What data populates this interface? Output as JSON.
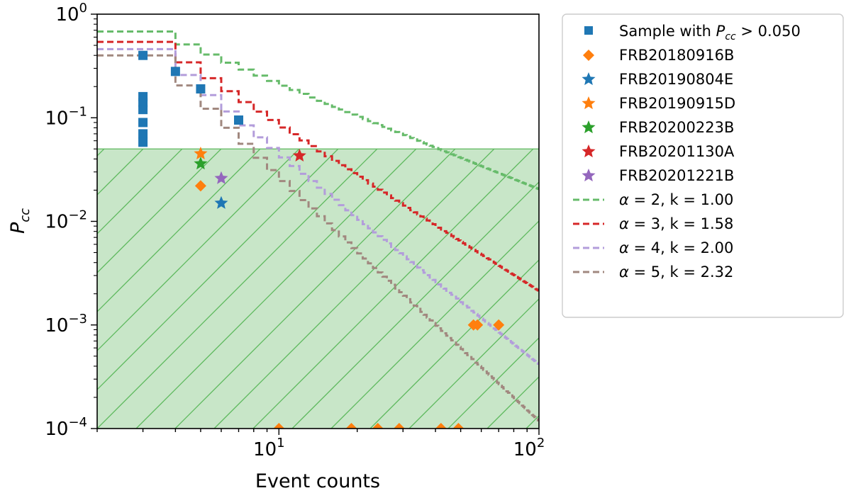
{
  "chart_data": {
    "type": "scatter",
    "xscale": "log",
    "yscale": "log",
    "xlim": [
      2,
      100
    ],
    "ylim": [
      0.0001,
      1
    ],
    "xlabel": "Event counts",
    "ylabel_main": "P",
    "ylabel_sub": "cc",
    "xticks": [
      {
        "base": "10",
        "exp": "1",
        "value": 10
      },
      {
        "base": "10",
        "exp": "2",
        "value": 100
      }
    ],
    "yticks": [
      {
        "base": "10",
        "exp": "0",
        "value": 1
      },
      {
        "base": "10",
        "exp": "−1",
        "value": 0.1
      },
      {
        "base": "10",
        "exp": "−2",
        "value": 0.01
      },
      {
        "base": "10",
        "exp": "−3",
        "value": 0.001
      },
      {
        "base": "10",
        "exp": "−4",
        "value": 0.0001
      }
    ],
    "threshold": {
      "value": 0.05,
      "fill_color": "#c8e6c8",
      "line_color": "#5cb85c"
    },
    "legend_position": "outside-right",
    "legend": {
      "sample_prefix": "Sample with ",
      "sample_sym": "P",
      "sample_sub": "cc",
      "sample_suffix": " > 0.050"
    },
    "sample": {
      "color": "#1f77b4",
      "marker": "square",
      "points": [
        {
          "x": 3,
          "y": 0.4
        },
        {
          "x": 3,
          "y": 0.16
        },
        {
          "x": 3,
          "y": 0.14
        },
        {
          "x": 3,
          "y": 0.12
        },
        {
          "x": 3,
          "y": 0.09
        },
        {
          "x": 3,
          "y": 0.07
        },
        {
          "x": 3,
          "y": 0.058
        },
        {
          "x": 4,
          "y": 0.28
        },
        {
          "x": 5,
          "y": 0.19
        },
        {
          "x": 7,
          "y": 0.095
        }
      ]
    },
    "frbs": [
      {
        "name": "FRB20180916B",
        "color": "#ff7f0e",
        "marker": "diamond",
        "points": [
          {
            "x": 5,
            "y": 0.022
          },
          {
            "x": 56,
            "y": 0.001
          },
          {
            "x": 58,
            "y": 0.001
          },
          {
            "x": 70,
            "y": 0.001
          },
          {
            "x": 10,
            "y": 0.0001
          },
          {
            "x": 19,
            "y": 0.0001
          },
          {
            "x": 24,
            "y": 0.0001
          },
          {
            "x": 29,
            "y": 0.0001
          },
          {
            "x": 42,
            "y": 0.0001
          },
          {
            "x": 49,
            "y": 0.0001
          }
        ]
      },
      {
        "name": "FRB20190804E",
        "color": "#1f77b4",
        "marker": "star",
        "points": [
          {
            "x": 6,
            "y": 0.015
          }
        ]
      },
      {
        "name": "FRB20190915D",
        "color": "#ff7f0e",
        "marker": "star",
        "points": [
          {
            "x": 5,
            "y": 0.045
          }
        ]
      },
      {
        "name": "FRB20200223B",
        "color": "#2ca02c",
        "marker": "star",
        "points": [
          {
            "x": 5,
            "y": 0.036
          }
        ]
      },
      {
        "name": "FRB20201130A",
        "color": "#d62728",
        "marker": "star",
        "points": [
          {
            "x": 12,
            "y": 0.043
          }
        ]
      },
      {
        "name": "FRB20201221B",
        "color": "#9467bd",
        "marker": "star",
        "points": [
          {
            "x": 6,
            "y": 0.026
          }
        ]
      }
    ],
    "curves": [
      {
        "alpha": "2",
        "k": "1.00",
        "label_k": "k = 1.00",
        "color": "#66bb6a",
        "p0": 0.68
      },
      {
        "alpha": "3",
        "k": "1.58",
        "label_k": "k = 1.58",
        "color": "#d62728",
        "p0": 0.54
      },
      {
        "alpha": "4",
        "k": "2.00",
        "label_k": "k = 2.00",
        "color": "#b39ddb",
        "p0": 0.46
      },
      {
        "alpha": "5",
        "k": "2.32",
        "label_k": "k = 2.32",
        "color": "#a1887f",
        "p0": 0.4
      }
    ]
  }
}
